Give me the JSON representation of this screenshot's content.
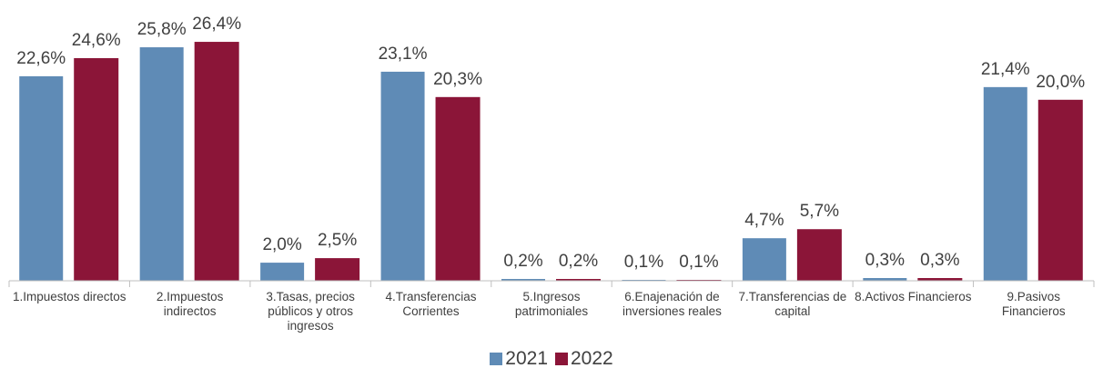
{
  "chart_data": {
    "type": "bar",
    "categories": [
      "1.Impuestos directos",
      "2.Impuestos indirectos",
      "3.Tasas, precios públicos y otros ingresos",
      "4.Transferencias Corrientes",
      "5.Ingresos patrimoniales",
      "6.Enajenación de inversiones reales",
      "7.Transferencias de capital",
      "8.Activos Financieros",
      "9.Pasivos Financieros"
    ],
    "series": [
      {
        "name": "2021",
        "color": "#5f8bb6",
        "values": [
          22.6,
          25.8,
          2.0,
          23.1,
          0.2,
          0.1,
          4.7,
          0.3,
          21.4
        ],
        "value_labels": [
          "22,6%",
          "25,8%",
          "2,0%",
          "23,1%",
          "0,2%",
          "0,1%",
          "4,7%",
          "0,3%",
          "21,4%"
        ]
      },
      {
        "name": "2022",
        "color": "#8b1538",
        "values": [
          24.6,
          26.4,
          2.5,
          20.3,
          0.2,
          0.1,
          5.7,
          0.3,
          20.0
        ],
        "value_labels": [
          "24,6%",
          "26,4%",
          "2,5%",
          "20,3%",
          "0,2%",
          "0,1%",
          "5,7%",
          "0,3%",
          "20,0%"
        ]
      }
    ],
    "legend": "bottom"
  }
}
